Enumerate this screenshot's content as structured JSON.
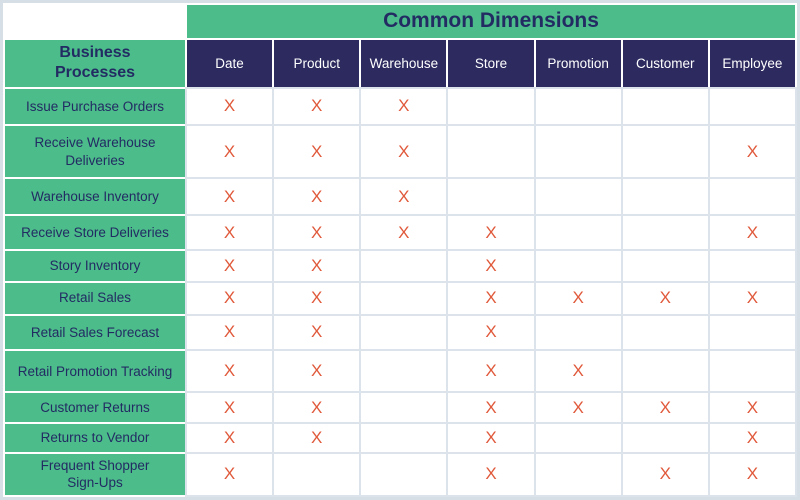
{
  "title": "Common Dimensions",
  "corner": {
    "label": "Business\nProcesses"
  },
  "columns": [
    "Date",
    "Product",
    "Warehouse",
    "Store",
    "Promotion",
    "Customer",
    "Employee"
  ],
  "rows": [
    {
      "label": "Issue Purchase Orders",
      "marks": [
        1,
        1,
        1,
        0,
        0,
        0,
        0
      ]
    },
    {
      "label": "Receive Warehouse\nDeliveries",
      "marks": [
        1,
        1,
        1,
        0,
        0,
        0,
        1
      ]
    },
    {
      "label": "Warehouse Inventory",
      "marks": [
        1,
        1,
        1,
        0,
        0,
        0,
        0
      ]
    },
    {
      "label": "Receive Store Deliveries",
      "marks": [
        1,
        1,
        1,
        1,
        0,
        0,
        1
      ]
    },
    {
      "label": "Story Inventory",
      "marks": [
        1,
        1,
        0,
        1,
        0,
        0,
        0
      ]
    },
    {
      "label": "Retail Sales",
      "marks": [
        1,
        1,
        0,
        1,
        1,
        1,
        1
      ]
    },
    {
      "label": "Retail Sales Forecast",
      "marks": [
        1,
        1,
        0,
        1,
        0,
        0,
        0
      ]
    },
    {
      "label": "Retail Promotion Tracking",
      "marks": [
        1,
        1,
        0,
        1,
        1,
        0,
        0
      ]
    },
    {
      "label": "Customer Returns",
      "marks": [
        1,
        1,
        0,
        1,
        1,
        1,
        1
      ]
    },
    {
      "label": "Returns to Vendor",
      "marks": [
        1,
        1,
        0,
        1,
        0,
        0,
        1
      ]
    },
    {
      "label": "Frequent Shopper\nSign-Ups",
      "marks": [
        1,
        0,
        0,
        1,
        0,
        1,
        1
      ]
    }
  ],
  "mark_glyph": "X",
  "colors": {
    "green": "#4CBC8B",
    "navy": "#2C2A5F",
    "mark": "#E0593B",
    "grid": "#DCE3EA",
    "text_navy": "#232B63",
    "frame": "#D7DFE6"
  }
}
